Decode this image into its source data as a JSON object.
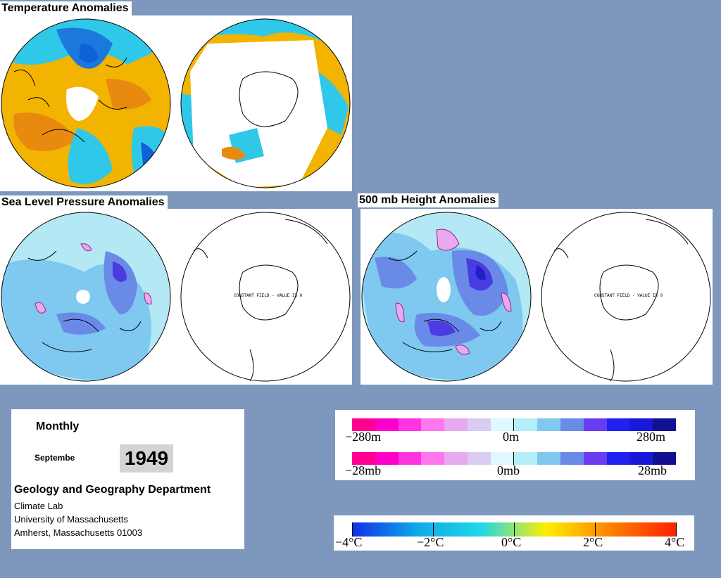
{
  "panels": {
    "temperature": {
      "title": "Temperature Anomalies"
    },
    "slp": {
      "title": "Sea Level Pressure Anomalies",
      "south_annotation": "CONSTANT FIELD - VALUE IS 0"
    },
    "height500": {
      "title": "500 mb Height Anomalies",
      "south_annotation": "CONSTANT FIELD - VALUE IS 0"
    }
  },
  "info": {
    "period": "Monthly",
    "month": "Septembe",
    "year": "1949",
    "department": "Geology and Geography Department",
    "lab": "Climate Lab",
    "university": "University of Massachusetts",
    "address": "Amherst, Massachusetts 01003"
  },
  "legend_height": {
    "labels": [
      "−280m",
      "0m",
      "280m"
    ],
    "colors": [
      "#ff0090",
      "#ff00cc",
      "#ff33e0",
      "#ff77ee",
      "#e8aaee",
      "#d8ccf2",
      "#e0f8ff",
      "#b4eef8",
      "#7fc8f0",
      "#6a8ae8",
      "#6a3cf0",
      "#2020f0",
      "#1818d8",
      "#101090"
    ]
  },
  "legend_pressure": {
    "labels": [
      "−28mb",
      "0mb",
      "28mb"
    ],
    "colors": [
      "#ff0090",
      "#ff00cc",
      "#ff33e0",
      "#ff77ee",
      "#e8aaee",
      "#d8ccf2",
      "#e0f8ff",
      "#b4eef8",
      "#7fc8f0",
      "#6a8ae8",
      "#6a3cf0",
      "#2020f0",
      "#1818d8",
      "#101090"
    ]
  },
  "legend_temperature": {
    "labels": [
      "−4°C",
      "−2°C",
      "0°C",
      "2°C",
      "4°C"
    ],
    "colors": [
      "#1030e8",
      "#10a8e8",
      "#20d8e8",
      "#ffee00",
      "#ff8000",
      "#ff2000"
    ]
  },
  "colors": {
    "background": "#7d97bd",
    "temp_warm": "#f2b400",
    "temp_hot": "#e88a10",
    "temp_cool": "#30c8e8",
    "temp_cold": "#1060d8",
    "anom_light": "#b4e8f4",
    "anom_mid": "#7fc8f0",
    "anom_dark": "#6a8ae8",
    "anom_deep": "#4a3ce0",
    "anom_pink": "#e8aaee"
  }
}
